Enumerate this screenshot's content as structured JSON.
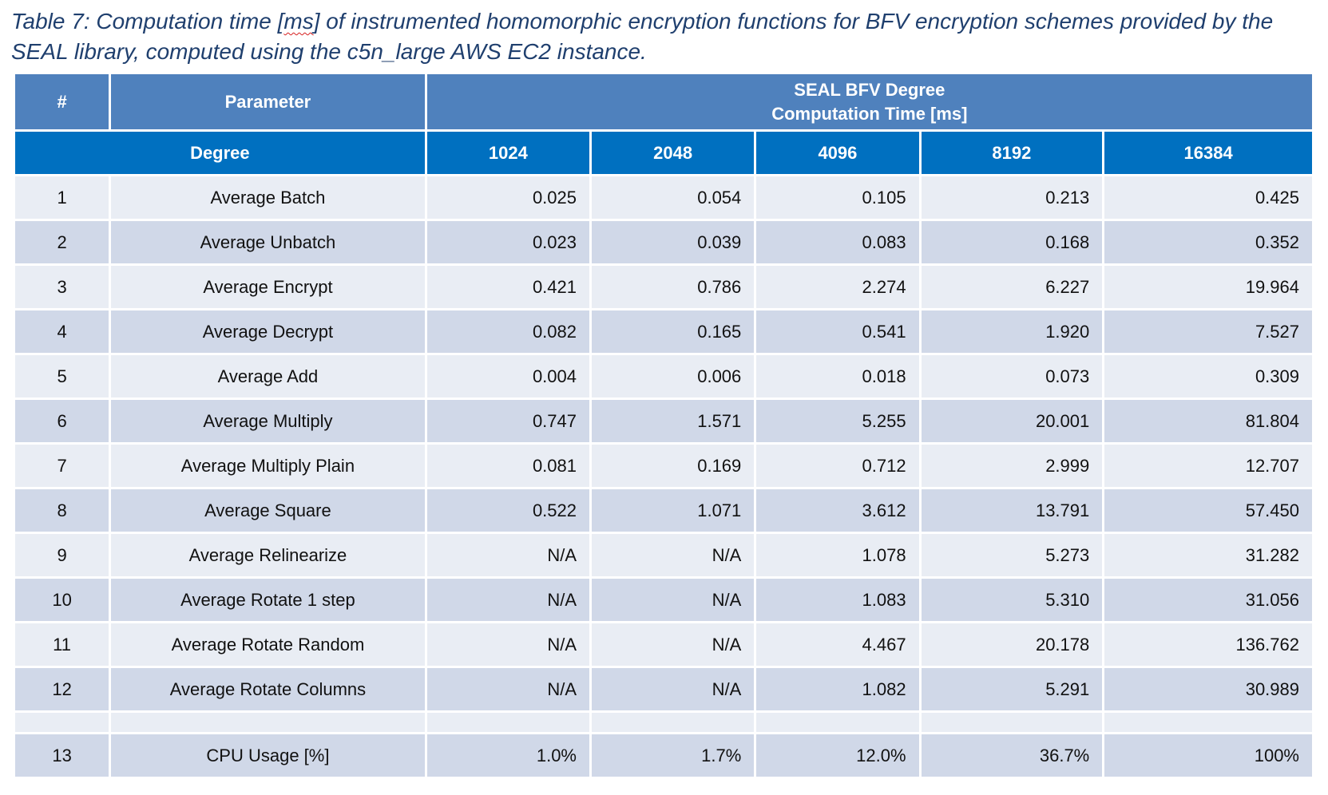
{
  "caption": {
    "prefix": "Table 7: Computation time [",
    "unit_misspelled": "ms",
    "suffix": "] of instrumented homomorphic encryption functions for BFV encryption schemes provided by the SEAL library, computed using the c5n_large AWS EC2 instance."
  },
  "header": {
    "number_label": "#",
    "parameter_label": "Parameter",
    "group_title_line1": "SEAL BFV Degree",
    "group_title_line2": "Computation Time [ms]",
    "degree_label": "Degree",
    "degrees": [
      "1024",
      "2048",
      "4096",
      "8192",
      "16384"
    ]
  },
  "rows": [
    {
      "num": "1",
      "param": "Average Batch",
      "values": [
        "0.025",
        "0.054",
        "0.105",
        "0.213",
        "0.425"
      ]
    },
    {
      "num": "2",
      "param": "Average Unbatch",
      "values": [
        "0.023",
        "0.039",
        "0.083",
        "0.168",
        "0.352"
      ]
    },
    {
      "num": "3",
      "param": "Average Encrypt",
      "values": [
        "0.421",
        "0.786",
        "2.274",
        "6.227",
        "19.964"
      ]
    },
    {
      "num": "4",
      "param": "Average Decrypt",
      "values": [
        "0.082",
        "0.165",
        "0.541",
        "1.920",
        "7.527"
      ]
    },
    {
      "num": "5",
      "param": "Average Add",
      "values": [
        "0.004",
        "0.006",
        "0.018",
        "0.073",
        "0.309"
      ]
    },
    {
      "num": "6",
      "param": "Average Multiply",
      "values": [
        "0.747",
        "1.571",
        "5.255",
        "20.001",
        "81.804"
      ]
    },
    {
      "num": "7",
      "param": "Average Multiply Plain",
      "values": [
        "0.081",
        "0.169",
        "0.712",
        "2.999",
        "12.707"
      ]
    },
    {
      "num": "8",
      "param": "Average Square",
      "values": [
        "0.522",
        "1.071",
        "3.612",
        "13.791",
        "57.450"
      ]
    },
    {
      "num": "9",
      "param": "Average Relinearize",
      "values": [
        "N/A",
        "N/A",
        "1.078",
        "5.273",
        "31.282"
      ]
    },
    {
      "num": "10",
      "param": "Average Rotate 1 step",
      "values": [
        "N/A",
        "N/A",
        "1.083",
        "5.310",
        "31.056"
      ]
    },
    {
      "num": "11",
      "param": "Average Rotate Random",
      "values": [
        "N/A",
        "N/A",
        "4.467",
        "20.178",
        "136.762"
      ]
    },
    {
      "num": "12",
      "param": "Average Rotate Columns",
      "values": [
        "N/A",
        "N/A",
        "1.082",
        "5.291",
        "30.989"
      ]
    }
  ],
  "cpu_row": {
    "num": "13",
    "param": "CPU Usage [%]",
    "values": [
      "1.0%",
      "1.7%",
      "12.0%",
      "36.7%",
      "100%"
    ]
  },
  "colors": {
    "header_top": "#4f81bd",
    "header_second": "#0070c0",
    "row_light": "#e9edf4",
    "row_dark": "#d0d8e8",
    "caption_text": "#1f3f6e"
  }
}
